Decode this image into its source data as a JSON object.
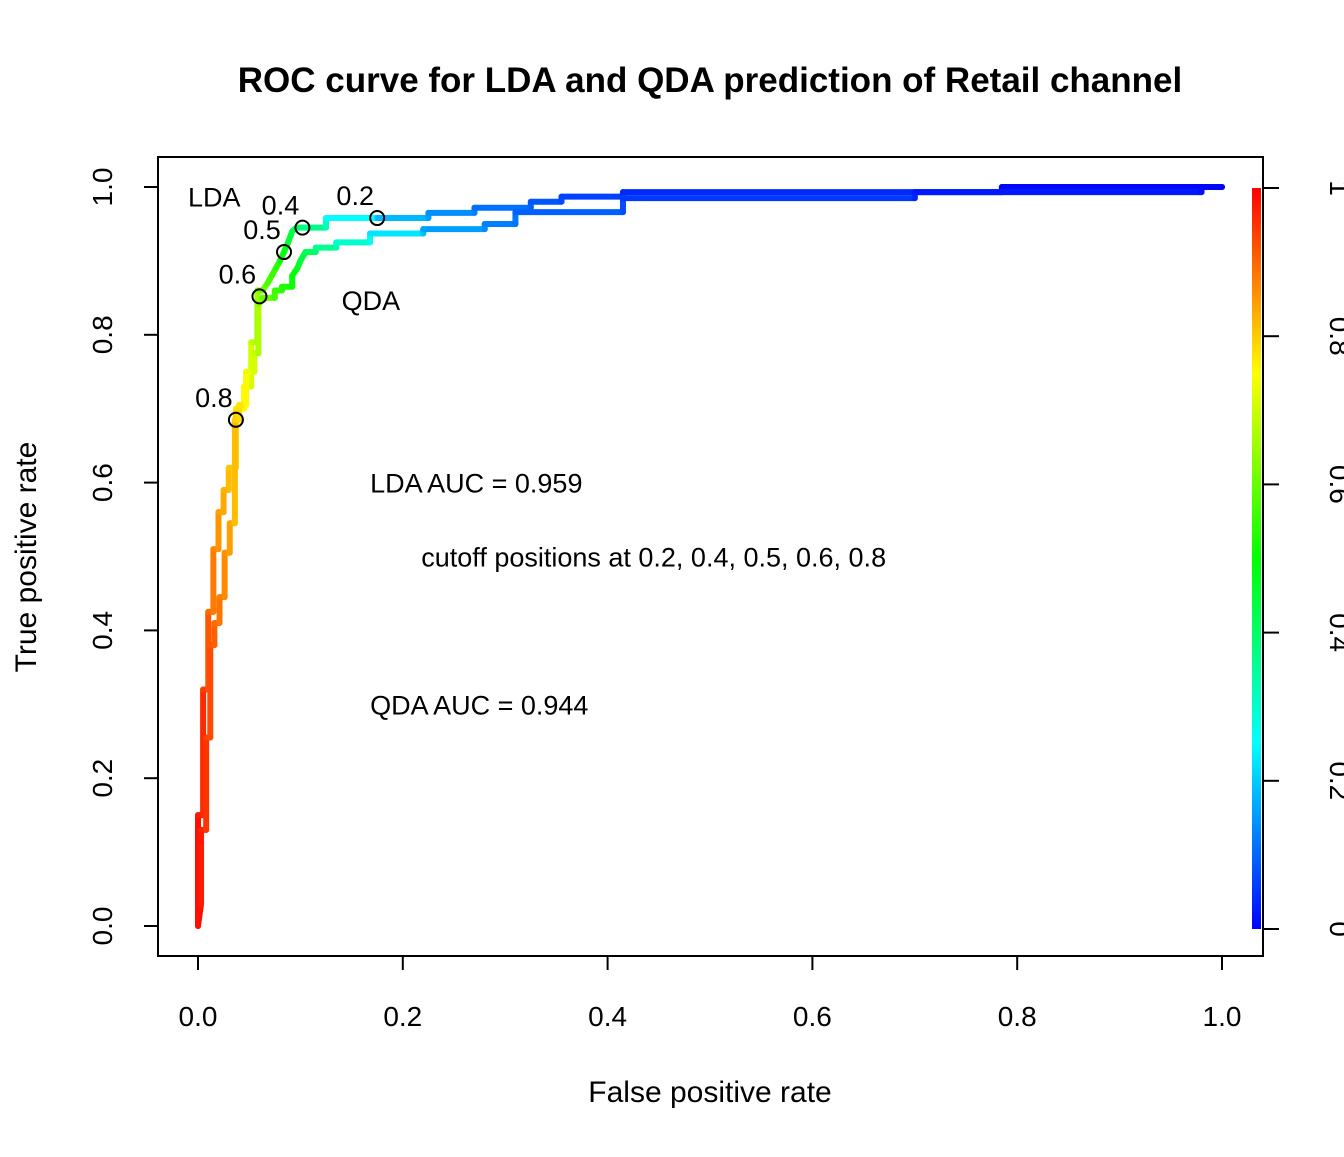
{
  "chart_data": {
    "type": "line",
    "title": "ROC curve for LDA and QDA prediction of Retail channel",
    "xlabel": "False positive rate",
    "ylabel": "True positive rate",
    "xlim": [
      0,
      1
    ],
    "ylim": [
      0,
      1
    ],
    "grid": false,
    "x_ticks": [
      "0.0",
      "0.2",
      "0.4",
      "0.6",
      "0.8",
      "1.0"
    ],
    "y_ticks": [
      "0.0",
      "0.2",
      "0.4",
      "0.6",
      "0.8",
      "1.0"
    ],
    "colorbar": {
      "ticks": [
        "0",
        "0.2",
        "0.4",
        "0.6",
        "0.8",
        "1"
      ],
      "range": [
        0,
        1
      ],
      "colors": [
        "#0000ff",
        "#00ffff",
        "#00ff00",
        "#ffff00",
        "#ff0000"
      ]
    },
    "series": [
      {
        "name": "LDA",
        "points": [
          [
            0.0,
            0.0,
            0.99
          ],
          [
            0.0,
            0.15,
            0.98
          ],
          [
            0.005,
            0.15,
            0.97
          ],
          [
            0.005,
            0.32,
            0.95
          ],
          [
            0.01,
            0.32,
            0.93
          ],
          [
            0.01,
            0.425,
            0.9
          ],
          [
            0.015,
            0.425,
            0.89
          ],
          [
            0.015,
            0.51,
            0.87
          ],
          [
            0.02,
            0.51,
            0.86
          ],
          [
            0.02,
            0.56,
            0.85
          ],
          [
            0.025,
            0.56,
            0.84
          ],
          [
            0.025,
            0.59,
            0.83
          ],
          [
            0.03,
            0.59,
            0.82
          ],
          [
            0.03,
            0.62,
            0.81
          ],
          [
            0.037,
            0.62,
            0.8
          ],
          [
            0.037,
            0.7,
            0.79
          ],
          [
            0.045,
            0.7,
            0.76
          ],
          [
            0.045,
            0.73,
            0.75
          ],
          [
            0.052,
            0.73,
            0.72
          ],
          [
            0.052,
            0.79,
            0.7
          ],
          [
            0.058,
            0.79,
            0.67
          ],
          [
            0.058,
            0.86,
            0.63
          ],
          [
            0.063,
            0.86,
            0.62
          ],
          [
            0.068,
            0.87,
            0.58
          ],
          [
            0.072,
            0.88,
            0.56
          ],
          [
            0.076,
            0.89,
            0.55
          ],
          [
            0.08,
            0.9,
            0.53
          ],
          [
            0.084,
            0.912,
            0.5
          ],
          [
            0.088,
            0.925,
            0.46
          ],
          [
            0.092,
            0.94,
            0.43
          ],
          [
            0.096,
            0.945,
            0.41
          ],
          [
            0.102,
            0.945,
            0.4
          ],
          [
            0.125,
            0.945,
            0.33
          ],
          [
            0.125,
            0.958,
            0.3
          ],
          [
            0.175,
            0.958,
            0.2
          ],
          [
            0.225,
            0.958,
            0.16
          ],
          [
            0.225,
            0.965,
            0.15
          ],
          [
            0.27,
            0.965,
            0.13
          ],
          [
            0.27,
            0.972,
            0.12
          ],
          [
            0.325,
            0.972,
            0.1
          ],
          [
            0.325,
            0.98,
            0.09
          ],
          [
            0.355,
            0.98,
            0.08
          ],
          [
            0.355,
            0.987,
            0.07
          ],
          [
            0.415,
            0.987,
            0.06
          ],
          [
            0.415,
            0.993,
            0.05
          ],
          [
            0.7,
            0.993,
            0.03
          ],
          [
            0.785,
            0.993,
            0.02
          ],
          [
            0.785,
            1.0,
            0.01
          ],
          [
            1.0,
            1.0,
            0.0
          ]
        ]
      },
      {
        "name": "QDA",
        "points": [
          [
            0.0,
            0.0,
            0.99
          ],
          [
            0.003,
            0.03,
            0.98
          ],
          [
            0.003,
            0.13,
            0.97
          ],
          [
            0.008,
            0.13,
            0.96
          ],
          [
            0.008,
            0.255,
            0.94
          ],
          [
            0.012,
            0.255,
            0.93
          ],
          [
            0.012,
            0.38,
            0.92
          ],
          [
            0.016,
            0.38,
            0.91
          ],
          [
            0.016,
            0.41,
            0.9
          ],
          [
            0.021,
            0.41,
            0.89
          ],
          [
            0.021,
            0.445,
            0.88
          ],
          [
            0.026,
            0.445,
            0.87
          ],
          [
            0.026,
            0.505,
            0.86
          ],
          [
            0.031,
            0.505,
            0.85
          ],
          [
            0.031,
            0.545,
            0.84
          ],
          [
            0.036,
            0.545,
            0.83
          ],
          [
            0.036,
            0.685,
            0.8
          ],
          [
            0.04,
            0.685,
            0.79
          ],
          [
            0.04,
            0.705,
            0.78
          ],
          [
            0.047,
            0.705,
            0.77
          ],
          [
            0.047,
            0.75,
            0.74
          ],
          [
            0.055,
            0.75,
            0.72
          ],
          [
            0.055,
            0.775,
            0.7
          ],
          [
            0.059,
            0.775,
            0.68
          ],
          [
            0.059,
            0.84,
            0.66
          ],
          [
            0.063,
            0.85,
            0.62
          ],
          [
            0.075,
            0.85,
            0.58
          ],
          [
            0.075,
            0.86,
            0.56
          ],
          [
            0.082,
            0.86,
            0.55
          ],
          [
            0.082,
            0.865,
            0.54
          ],
          [
            0.092,
            0.865,
            0.52
          ],
          [
            0.092,
            0.88,
            0.5
          ],
          [
            0.097,
            0.89,
            0.48
          ],
          [
            0.1,
            0.9,
            0.46
          ],
          [
            0.105,
            0.912,
            0.43
          ],
          [
            0.115,
            0.912,
            0.4
          ],
          [
            0.115,
            0.918,
            0.38
          ],
          [
            0.135,
            0.918,
            0.34
          ],
          [
            0.135,
            0.925,
            0.32
          ],
          [
            0.168,
            0.925,
            0.28
          ],
          [
            0.168,
            0.937,
            0.25
          ],
          [
            0.22,
            0.937,
            0.2
          ],
          [
            0.22,
            0.943,
            0.17
          ],
          [
            0.28,
            0.943,
            0.14
          ],
          [
            0.28,
            0.95,
            0.13
          ],
          [
            0.31,
            0.95,
            0.12
          ],
          [
            0.31,
            0.966,
            0.11
          ],
          [
            0.415,
            0.966,
            0.08
          ],
          [
            0.415,
            0.985,
            0.07
          ],
          [
            0.7,
            0.985,
            0.04
          ],
          [
            0.7,
            0.993,
            0.03
          ],
          [
            0.98,
            0.993,
            0.02
          ],
          [
            0.98,
            1.0,
            0.01
          ],
          [
            1.0,
            1.0,
            0.0
          ]
        ]
      }
    ],
    "cutoff_markers": [
      {
        "series": "LDA",
        "cutoff": "0.2",
        "x": 0.175,
        "y": 0.958
      },
      {
        "series": "LDA",
        "cutoff": "0.4",
        "x": 0.102,
        "y": 0.945
      },
      {
        "series": "LDA",
        "cutoff": "0.5",
        "x": 0.084,
        "y": 0.912
      },
      {
        "series": "LDA",
        "cutoff": "0.6",
        "x": 0.06,
        "y": 0.852
      },
      {
        "series": "LDA",
        "cutoff": "0.8",
        "x": 0.037,
        "y": 0.685
      }
    ],
    "curve_labels": [
      {
        "text": "LDA",
        "x": 0.0,
        "y": 0.99
      },
      {
        "text": "QDA",
        "x": 0.15,
        "y": 0.85
      }
    ],
    "annotations": [
      {
        "text": "LDA  AUC = 0.959",
        "x": 0.17,
        "y": 0.6
      },
      {
        "text": "cutoff positions at 0.2, 0.4, 0.5, 0.6, 0.8",
        "x": 0.22,
        "y": 0.5
      },
      {
        "text": "QDA  AUC = 0.944",
        "x": 0.17,
        "y": 0.3
      }
    ]
  }
}
